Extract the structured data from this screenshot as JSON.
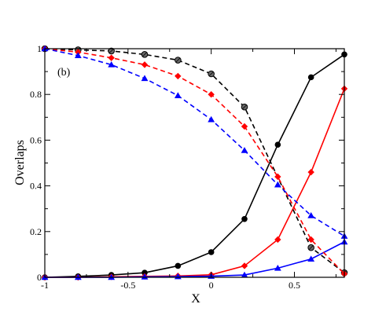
{
  "chart_data": {
    "type": "line",
    "panel_label": "(b)",
    "xlabel": "X",
    "ylabel": "Overlaps",
    "xlim": [
      -1,
      0.8
    ],
    "ylim": [
      0,
      1
    ],
    "x_ticks": [
      -1,
      -0.5,
      0,
      0.5
    ],
    "x_tick_labels": [
      "-1",
      "-0.5",
      "0",
      "0.5"
    ],
    "y_ticks": [
      0,
      0.2,
      0.4,
      0.6,
      0.8,
      1
    ],
    "y_tick_labels": [
      "0",
      "0.2",
      "0.4",
      "0.6",
      "0.8",
      "1"
    ],
    "grid": false,
    "series": [
      {
        "color": "#000000",
        "marker": "circle",
        "line": "solid",
        "x": [
          -1,
          -0.8,
          -0.6,
          -0.4,
          -0.2,
          0,
          0.2,
          0.4,
          0.6,
          0.8
        ],
        "y": [
          0.0,
          0.004,
          0.01,
          0.02,
          0.05,
          0.11,
          0.255,
          0.58,
          0.875,
          0.975
        ]
      },
      {
        "color": "#ff0000",
        "marker": "diamond",
        "line": "solid",
        "x": [
          -1,
          -0.8,
          -0.6,
          -0.4,
          -0.2,
          0,
          0.2,
          0.4,
          0.6,
          0.8
        ],
        "y": [
          0.0,
          0.0,
          0.002,
          0.004,
          0.006,
          0.011,
          0.05,
          0.165,
          0.46,
          0.825
        ]
      },
      {
        "color": "#0000ff",
        "marker": "triangle",
        "line": "solid",
        "x": [
          -1,
          -0.8,
          -0.6,
          -0.4,
          -0.2,
          0,
          0.2,
          0.4,
          0.6,
          0.8
        ],
        "y": [
          0.0,
          0.0,
          0.0,
          0.002,
          0.003,
          0.005,
          0.01,
          0.04,
          0.08,
          0.155
        ]
      },
      {
        "color": "#000000",
        "marker": "circle-hatched",
        "line": "dashed",
        "x": [
          -1,
          -0.8,
          -0.6,
          -0.4,
          -0.2,
          0,
          0.2,
          0.6,
          0.8
        ],
        "y": [
          1.0,
          0.995,
          0.99,
          0.975,
          0.95,
          0.89,
          0.745,
          0.13,
          0.02
        ]
      },
      {
        "color": "#ff0000",
        "marker": "diamond",
        "line": "dashed",
        "x": [
          -1,
          -0.8,
          -0.6,
          -0.4,
          -0.2,
          0,
          0.2,
          0.4,
          0.6,
          0.8
        ],
        "y": [
          1.0,
          0.985,
          0.96,
          0.93,
          0.88,
          0.8,
          0.66,
          0.44,
          0.165,
          0.015
        ]
      },
      {
        "color": "#0000ff",
        "marker": "triangle",
        "line": "dashed",
        "x": [
          -1,
          -0.8,
          -0.6,
          -0.4,
          -0.2,
          0,
          0.2,
          0.4,
          0.6,
          0.8
        ],
        "y": [
          1.0,
          0.97,
          0.93,
          0.87,
          0.795,
          0.69,
          0.555,
          0.405,
          0.27,
          0.18
        ]
      }
    ]
  }
}
